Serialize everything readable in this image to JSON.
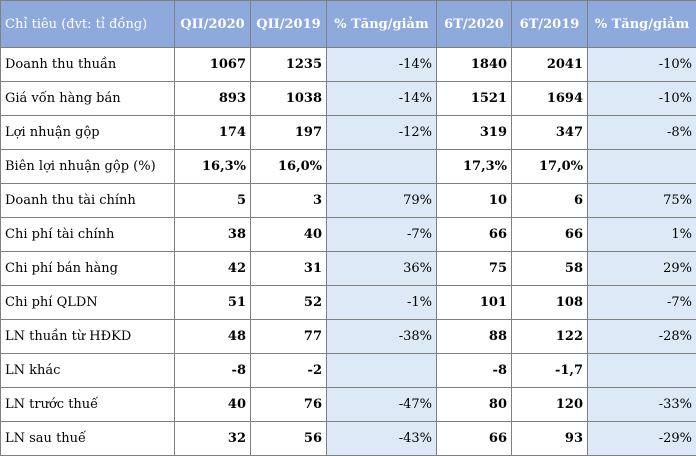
{
  "table": {
    "columns": [
      "Chỉ tiêu (đvt: tỉ đồng)",
      "QII/2020",
      "QII/2019",
      "% Tăng/giảm",
      "6T/2020",
      "6T/2019",
      "% Tăng/giảm"
    ],
    "rows": [
      [
        "Doanh thu thuần",
        "1067",
        "1235",
        "-14%",
        "1840",
        "2041",
        "-10%"
      ],
      [
        "Giá vốn hàng bán",
        "893",
        "1038",
        "-14%",
        "1521",
        "1694",
        "-10%"
      ],
      [
        "Lợi nhuận gộp",
        "174",
        "197",
        "-12%",
        "319",
        "347",
        "-8%"
      ],
      [
        "Biên lợi nhuận gộp (%)",
        "16,3%",
        "16,0%",
        "",
        "17,3%",
        "17,0%",
        ""
      ],
      [
        "Doanh thu tài chính",
        "5",
        "3",
        "79%",
        "10",
        "6",
        "75%"
      ],
      [
        "Chi phí tài chính",
        "38",
        "40",
        "-7%",
        "66",
        "66",
        "1%"
      ],
      [
        "Chi phí bán hàng",
        "42",
        "31",
        "36%",
        "75",
        "58",
        "29%"
      ],
      [
        "Chi phí QLDN",
        "51",
        "52",
        "-1%",
        "101",
        "108",
        "-7%"
      ],
      [
        "LN thuần từ HĐKD",
        "48",
        "77",
        "-38%",
        "88",
        "122",
        "-28%"
      ],
      [
        "LN khác",
        "-8",
        "-2",
        "",
        "-8",
        "-1,7",
        ""
      ],
      [
        "LN trước thuế",
        "40",
        "76",
        "-47%",
        "80",
        "120",
        "-33%"
      ],
      [
        "LN sau thuế",
        "32",
        "56",
        "-43%",
        "66",
        "93",
        "-29%"
      ]
    ]
  },
  "colors": {
    "header_bg": "#8ea9db",
    "header_text": "#ffffff",
    "pct_cell_bg": "#dde9f7",
    "border": "#808080"
  }
}
